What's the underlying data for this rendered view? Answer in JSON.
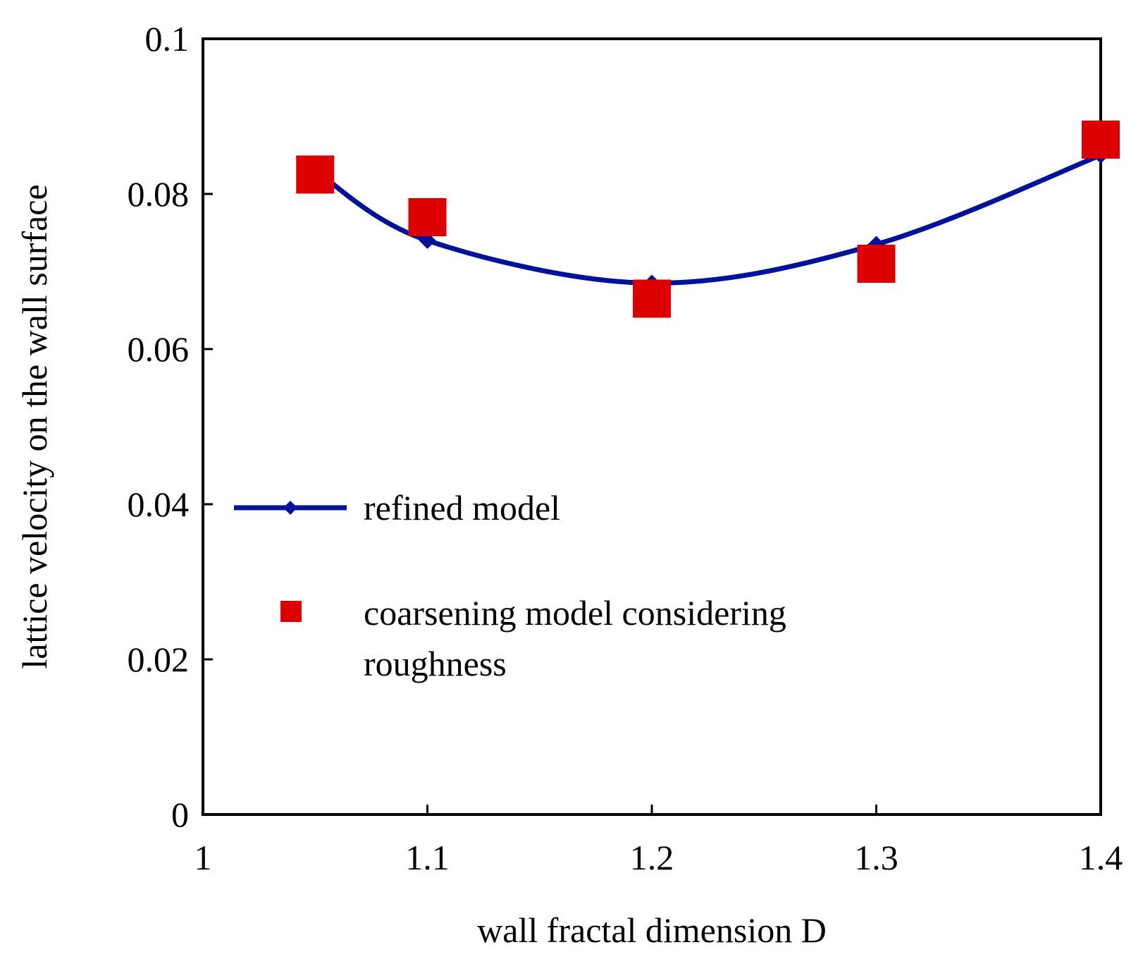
{
  "chart_data": {
    "type": "line",
    "title": "",
    "xlabel": "wall fractal dimension D",
    "ylabel": "lattice velocity on the wall surface",
    "xlim": [
      1,
      1.4
    ],
    "ylim": [
      0,
      0.1
    ],
    "x_ticks": [
      1,
      1.1,
      1.2,
      1.3,
      1.4
    ],
    "x_tick_labels": [
      "1",
      "1.1",
      "1.2",
      "1.3",
      "1.4"
    ],
    "y_ticks": [
      0,
      0.02,
      0.04,
      0.06,
      0.08,
      0.1
    ],
    "y_tick_labels": [
      "0",
      "0.02",
      "0.04",
      "0.06",
      "0.08",
      "0.1"
    ],
    "grid": false,
    "legend_position": "center-left",
    "series": [
      {
        "name": "refined model",
        "style": "smooth-line-with-diamond-markers",
        "color": "#00119a",
        "x": [
          1.05,
          1.1,
          1.2,
          1.3,
          1.4
        ],
        "y": [
          0.083,
          0.074,
          0.0685,
          0.0735,
          0.085
        ]
      },
      {
        "name": "coarsening model considering roughness",
        "style": "square-markers",
        "color": "#dd0000",
        "x": [
          1.05,
          1.1,
          1.2,
          1.3,
          1.4
        ],
        "y": [
          0.0825,
          0.077,
          0.0665,
          0.071,
          0.087
        ]
      }
    ]
  }
}
